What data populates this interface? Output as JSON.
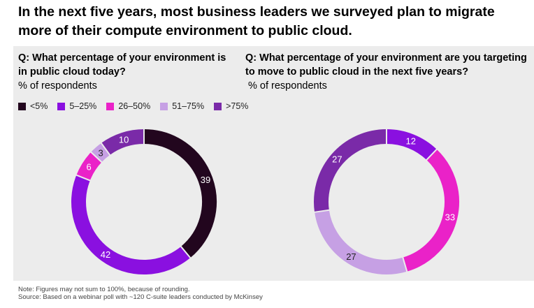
{
  "title": "In the next five years, most business leaders we surveyed plan to migrate more of their compute environment to public cloud.",
  "question_today": "Q: What percentage of your environment is in public cloud today?",
  "question_target": "Q: What percentage of your environment are you targeting to move to public cloud in the next five years?",
  "unit_label": "% of respondents",
  "legend": [
    {
      "label": "<5%",
      "color": "#22061e"
    },
    {
      "label": "5–25%",
      "color": "#8a10e0"
    },
    {
      "label": "26–50%",
      "color": "#ea22c8"
    },
    {
      "label": "51–75%",
      "color": "#c6a0e4"
    },
    {
      "label": ">75%",
      "color": "#7a2aa8"
    }
  ],
  "chart_data": [
    {
      "type": "pie",
      "donut": true,
      "title": "Q: What percentage of your environment is in public cloud today?",
      "categories": [
        "<5%",
        "5–25%",
        "26–50%",
        "51–75%",
        ">75%"
      ],
      "values": [
        39,
        42,
        6,
        3,
        10
      ]
    },
    {
      "type": "pie",
      "donut": true,
      "title": "Q: What percentage of your environment are you targeting to move to public cloud in the next five years?",
      "categories": [
        "<5%",
        "5–25%",
        "26–50%",
        "51–75%",
        ">75%"
      ],
      "values": [
        0,
        12,
        33,
        27,
        27
      ]
    }
  ],
  "footer": {
    "note": "Note: Figures may not sum to 100%, because of rounding.",
    "source": "Source: Based on a webinar poll with ~120 C-suite leaders conducted by McKinsey"
  }
}
